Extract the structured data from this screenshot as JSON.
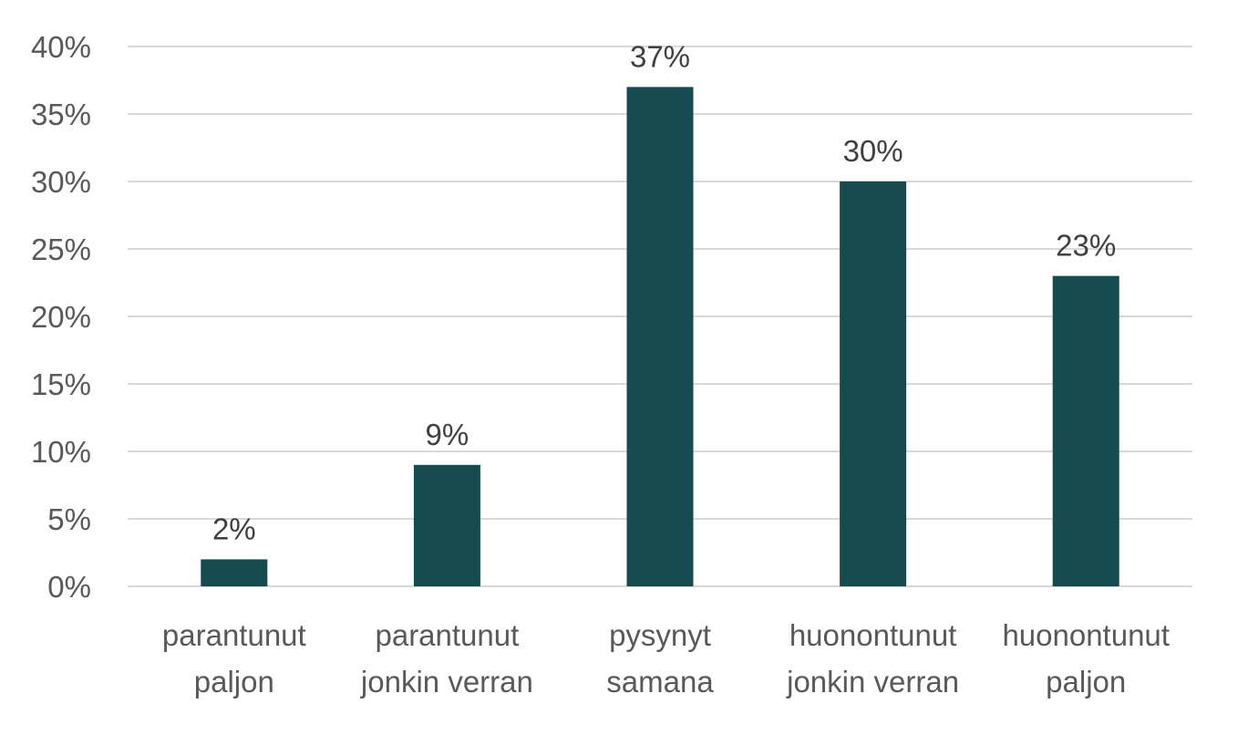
{
  "colors": {
    "bar": "#154a4e",
    "grid": "#d9d9d9",
    "tick_text": "#595959",
    "label_text": "#404040"
  },
  "chart_data": {
    "type": "bar",
    "categories": [
      [
        "parantunut",
        "paljon"
      ],
      [
        "parantunut",
        "jonkin verran"
      ],
      [
        "pysynyt",
        "samana"
      ],
      [
        "huonontunut",
        "jonkin verran"
      ],
      [
        "huonontunut",
        "paljon"
      ]
    ],
    "values": [
      2,
      9,
      37,
      30,
      23
    ],
    "data_labels": [
      "2%",
      "9%",
      "37%",
      "30%",
      "23%"
    ],
    "y_ticks": [
      "0%",
      "5%",
      "10%",
      "15%",
      "20%",
      "25%",
      "30%",
      "35%",
      "40%"
    ],
    "ylim": [
      0,
      40
    ],
    "grid": true,
    "legend": "none",
    "title": "",
    "xlabel": "",
    "ylabel": ""
  }
}
